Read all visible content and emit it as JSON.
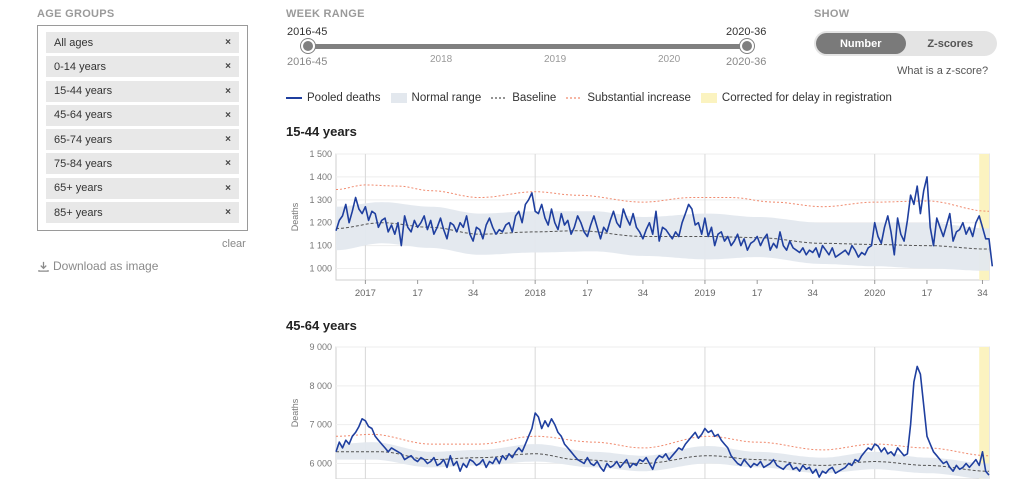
{
  "sidebar": {
    "age_groups_label": "AGE GROUPS",
    "items": [
      {
        "label": "All ages"
      },
      {
        "label": "0-14 years"
      },
      {
        "label": "15-44 years"
      },
      {
        "label": "45-64 years"
      },
      {
        "label": "65-74 years"
      },
      {
        "label": "75-84 years"
      },
      {
        "label": "65+ years"
      },
      {
        "label": "85+ years"
      }
    ],
    "remove_symbol": "×",
    "clear_label": "clear",
    "download_label": "Download as image"
  },
  "week_range": {
    "label": "WEEK RANGE",
    "start": "2016-45",
    "end": "2020-36",
    "start_sub": "2016-45",
    "end_sub": "2020-36",
    "years": [
      "2018",
      "2019",
      "2020"
    ]
  },
  "show": {
    "label": "SHOW",
    "options": [
      "Number",
      "Z-scores"
    ],
    "selected": "Number",
    "zscore_link": "What is a z-score?"
  },
  "legend": {
    "pooled": "Pooled deaths",
    "normal": "Normal range",
    "baseline": "Baseline",
    "substantial": "Substantial increase",
    "corrected": "Corrected for delay in registration"
  },
  "colors": {
    "pooled": "#1f3f9f",
    "normal": "#e3e8ee",
    "baseline": "#555555",
    "substantial": "#f08a6e",
    "corrected": "#fbf3c0"
  },
  "chart_data": [
    {
      "type": "line",
      "title": "15-44 years",
      "ylabel": "Deaths",
      "ylim": [
        950,
        1500
      ],
      "yticks": [
        1000,
        1100,
        1200,
        1300,
        1400,
        1500
      ],
      "ytick_labels": [
        "1 000",
        "1 100",
        "1 200",
        "1 300",
        "1 400",
        "1 500"
      ],
      "x_ticks": [
        {
          "week": 10,
          "label": "2017"
        },
        {
          "week": 26,
          "label": "17"
        },
        {
          "week": 43,
          "label": "34"
        },
        {
          "week": 62,
          "label": "2018"
        },
        {
          "week": 78,
          "label": "17"
        },
        {
          "week": 95,
          "label": "34"
        },
        {
          "week": 114,
          "label": "2019"
        },
        {
          "week": 130,
          "label": "17"
        },
        {
          "week": 147,
          "label": "34"
        },
        {
          "week": 166,
          "label": "2020"
        },
        {
          "week": 182,
          "label": "17"
        },
        {
          "week": 199,
          "label": "34"
        }
      ],
      "x_range": [
        1,
        201
      ],
      "corrected_from_week": 198,
      "baseline": [
        [
          1,
          1175
        ],
        [
          15,
          1200
        ],
        [
          30,
          1180
        ],
        [
          45,
          1150
        ],
        [
          62,
          1160
        ],
        [
          75,
          1165
        ],
        [
          95,
          1140
        ],
        [
          115,
          1140
        ],
        [
          130,
          1135
        ],
        [
          150,
          1110
        ],
        [
          166,
          1105
        ],
        [
          182,
          1100
        ],
        [
          201,
          1085
        ]
      ],
      "normal_upper": [
        [
          1,
          1270
        ],
        [
          15,
          1290
        ],
        [
          30,
          1270
        ],
        [
          45,
          1240
        ],
        [
          62,
          1250
        ],
        [
          80,
          1250
        ],
        [
          95,
          1225
        ],
        [
          115,
          1240
        ],
        [
          130,
          1225
        ],
        [
          150,
          1200
        ],
        [
          166,
          1200
        ],
        [
          182,
          1200
        ],
        [
          201,
          1175
        ]
      ],
      "normal_lower": [
        [
          1,
          1080
        ],
        [
          15,
          1110
        ],
        [
          30,
          1090
        ],
        [
          45,
          1060
        ],
        [
          62,
          1070
        ],
        [
          80,
          1075
        ],
        [
          95,
          1055
        ],
        [
          115,
          1040
        ],
        [
          130,
          1050
        ],
        [
          150,
          1020
        ],
        [
          166,
          1010
        ],
        [
          182,
          1000
        ],
        [
          201,
          990
        ]
      ],
      "substantial": [
        [
          1,
          1345
        ],
        [
          10,
          1365
        ],
        [
          20,
          1360
        ],
        [
          30,
          1340
        ],
        [
          45,
          1310
        ],
        [
          62,
          1335
        ],
        [
          75,
          1320
        ],
        [
          95,
          1290
        ],
        [
          110,
          1310
        ],
        [
          122,
          1310
        ],
        [
          135,
          1290
        ],
        [
          150,
          1270
        ],
        [
          166,
          1290
        ],
        [
          182,
          1295
        ],
        [
          201,
          1250
        ]
      ],
      "series": [
        {
          "name": "Pooled deaths",
          "x_start": 1,
          "values": [
            1165,
            1210,
            1230,
            1280,
            1200,
            1250,
            1310,
            1260,
            1240,
            1270,
            1210,
            1250,
            1240,
            1180,
            1210,
            1220,
            1160,
            1190,
            1150,
            1200,
            1100,
            1230,
            1180,
            1160,
            1210,
            1180,
            1200,
            1230,
            1170,
            1210,
            1150,
            1180,
            1220,
            1170,
            1130,
            1200,
            1190,
            1160,
            1200,
            1180,
            1230,
            1150,
            1120,
            1180,
            1170,
            1130,
            1190,
            1220,
            1180,
            1150,
            1170,
            1160,
            1190,
            1200,
            1160,
            1230,
            1250,
            1200,
            1280,
            1300,
            1330,
            1250,
            1240,
            1280,
            1220,
            1190,
            1260,
            1200,
            1170,
            1240,
            1190,
            1210,
            1150,
            1180,
            1230,
            1200,
            1160,
            1140,
            1190,
            1230,
            1180,
            1130,
            1180,
            1160,
            1210,
            1250,
            1200,
            1180,
            1260,
            1220,
            1190,
            1240,
            1180,
            1160,
            1130,
            1170,
            1200,
            1150,
            1250,
            1120,
            1180,
            1170,
            1150,
            1130,
            1160,
            1140,
            1200,
            1240,
            1280,
            1260,
            1190,
            1200,
            1150,
            1220,
            1140,
            1180,
            1100,
            1150,
            1160,
            1120,
            1140,
            1100,
            1120,
            1150,
            1100,
            1130,
            1080,
            1110,
            1120,
            1140,
            1100,
            1130,
            1150,
            1080,
            1110,
            1090,
            1160,
            1100,
            1080,
            1120,
            1090,
            1080,
            1070,
            1090,
            1060,
            1080,
            1070,
            1090,
            1050,
            1100,
            1080,
            1060,
            1090,
            1050,
            1060,
            1070,
            1080,
            1060,
            1100,
            1080,
            1050,
            1070,
            1060,
            1090,
            1100,
            1200,
            1140,
            1110,
            1180,
            1230,
            1160,
            1060,
            1220,
            1150,
            1120,
            1210,
            1320,
            1280,
            1360,
            1240,
            1340,
            1400,
            1180,
            1100,
            1220,
            1180,
            1140,
            1190,
            1240,
            1120,
            1160,
            1170,
            1200,
            1150,
            1180,
            1140,
            1200,
            1230,
            1180,
            1130,
            1130,
            1010
          ]
        }
      ]
    },
    {
      "type": "line",
      "title": "45-64 years",
      "ylabel": "Deaths",
      "ylim": [
        5600,
        9000
      ],
      "yticks": [
        6000,
        7000,
        8000,
        9000
      ],
      "ytick_labels": [
        "6 000",
        "7 000",
        "8 000",
        "9 000"
      ],
      "x_range": [
        1,
        201
      ],
      "corrected_from_week": 198,
      "baseline": [
        [
          1,
          6300
        ],
        [
          15,
          6300
        ],
        [
          30,
          6100
        ],
        [
          45,
          6150
        ],
        [
          62,
          6250
        ],
        [
          75,
          6100
        ],
        [
          95,
          6000
        ],
        [
          115,
          6200
        ],
        [
          130,
          6100
        ],
        [
          150,
          5950
        ],
        [
          166,
          6050
        ],
        [
          182,
          5950
        ],
        [
          201,
          5800
        ]
      ],
      "normal_upper": [
        [
          1,
          6500
        ],
        [
          12,
          6550
        ],
        [
          30,
          6300
        ],
        [
          45,
          6350
        ],
        [
          62,
          6500
        ],
        [
          80,
          6300
        ],
        [
          95,
          6200
        ],
        [
          115,
          6450
        ],
        [
          130,
          6300
        ],
        [
          150,
          6150
        ],
        [
          166,
          6300
        ],
        [
          182,
          6150
        ],
        [
          201,
          6000
        ]
      ],
      "normal_lower": [
        [
          1,
          6100
        ],
        [
          12,
          6100
        ],
        [
          30,
          5900
        ],
        [
          45,
          5950
        ],
        [
          62,
          6050
        ],
        [
          80,
          5900
        ],
        [
          95,
          5800
        ],
        [
          115,
          6000
        ],
        [
          130,
          5900
        ],
        [
          150,
          5750
        ],
        [
          166,
          5850
        ],
        [
          182,
          5750
        ],
        [
          201,
          5600
        ]
      ],
      "substantial": [
        [
          1,
          6700
        ],
        [
          12,
          6750
        ],
        [
          30,
          6500
        ],
        [
          45,
          6500
        ],
        [
          62,
          6700
        ],
        [
          80,
          6550
        ],
        [
          95,
          6400
        ],
        [
          115,
          6700
        ],
        [
          130,
          6550
        ],
        [
          150,
          6350
        ],
        [
          166,
          6500
        ],
        [
          182,
          6400
        ],
        [
          201,
          6200
        ]
      ],
      "series": [
        {
          "name": "Pooled deaths",
          "x_start": 1,
          "values": [
            6300,
            6550,
            6400,
            6600,
            6500,
            6700,
            6800,
            6950,
            7150,
            7100,
            6950,
            6900,
            6700,
            6600,
            6500,
            6400,
            6300,
            6400,
            6350,
            6300,
            6250,
            6100,
            6150,
            6200,
            6100,
            6050,
            6150,
            6100,
            6000,
            6050,
            6150,
            5950,
            6000,
            6100,
            5900,
            6200,
            5950,
            6050,
            5800,
            6000,
            5900,
            6100,
            6050,
            5950,
            6000,
            6100,
            5900,
            6050,
            6000,
            6150,
            6000,
            6200,
            6100,
            6250,
            6150,
            6300,
            6400,
            6300,
            6500,
            6700,
            6900,
            7300,
            7200,
            6900,
            7100,
            6950,
            7150,
            7000,
            6800,
            6700,
            6500,
            6400,
            6300,
            6200,
            6100,
            6050,
            6000,
            6150,
            6000,
            5950,
            6050,
            5900,
            5800,
            6000,
            5900,
            5950,
            6050,
            5900,
            6000,
            6100,
            5900,
            6000,
            5950,
            6100,
            6050,
            6150,
            6000,
            5850,
            6100,
            6200,
            6150,
            6250,
            6100,
            6200,
            6300,
            6400,
            6350,
            6500,
            6600,
            6700,
            6800,
            6650,
            6750,
            6900,
            6800,
            6850,
            6700,
            6750,
            6600,
            6500,
            6400,
            6200,
            6100,
            6000,
            5950,
            6100,
            6000,
            5900,
            6000,
            5950,
            6050,
            5900,
            5950,
            6000,
            6100,
            5950,
            5900,
            5850,
            5950,
            6000,
            5850,
            5900,
            5800,
            5950,
            5850,
            5900,
            5750,
            5850,
            5650,
            5800,
            5750,
            5850,
            5900,
            5750,
            5800,
            5850,
            5900,
            6000,
            5950,
            6100,
            6050,
            6200,
            6300,
            6400,
            6350,
            6500,
            6450,
            6300,
            6400,
            6250,
            6300,
            6200,
            6400,
            6300,
            6200,
            6250,
            7000,
            8100,
            8500,
            8300,
            7500,
            6700,
            6500,
            6300,
            6200,
            6100,
            6000,
            6050,
            5900,
            5800,
            5950,
            5850,
            5900,
            6000,
            5900,
            6000,
            6100,
            5950,
            6300,
            5800,
            5700
          ]
        }
      ]
    }
  ]
}
